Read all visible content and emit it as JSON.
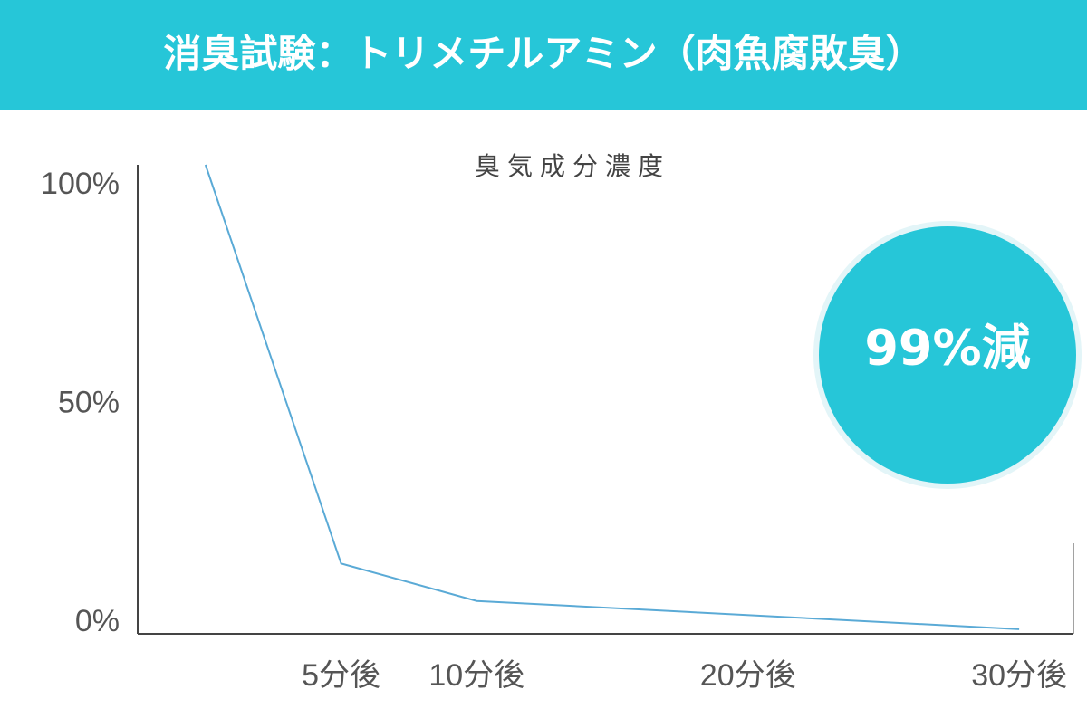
{
  "chart_data": {
    "type": "line",
    "title": "消臭試験：トリメチルアミン（肉魚腐敗臭）",
    "y_label": "臭気成分濃度",
    "annotation": "99%減",
    "x": [
      0,
      5,
      10,
      30
    ],
    "series": [
      {
        "color": "#5aaad6",
        "values": [
          100,
          15,
          7,
          1
        ]
      }
    ],
    "xlim": [
      -2.5,
      32
    ],
    "xticks": [
      {
        "value": 5,
        "label": "5分後"
      },
      {
        "value": 10,
        "label": "10分後"
      },
      {
        "value": 20,
        "label": "20分後"
      },
      {
        "value": 30,
        "label": "30分後"
      }
    ],
    "ylim": [
      0,
      100
    ],
    "yticks": [
      {
        "value": 100,
        "label": "100%"
      },
      {
        "value": 50,
        "label": "50%"
      },
      {
        "value": 0,
        "label": "0%"
      }
    ]
  }
}
